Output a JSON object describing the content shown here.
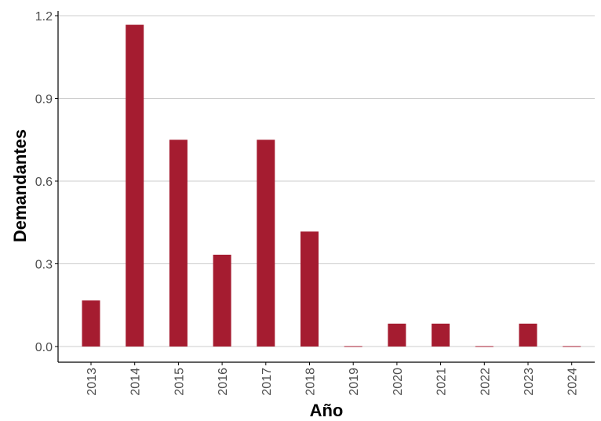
{
  "chart_data": {
    "type": "bar",
    "title": "",
    "xlabel": "Año",
    "ylabel": "Demandantes",
    "categories": [
      "2013",
      "2014",
      "2015",
      "2016",
      "2017",
      "2018",
      "2019",
      "2020",
      "2021",
      "2022",
      "2023",
      "2024"
    ],
    "values": [
      0.167,
      1.167,
      0.75,
      0.333,
      0.75,
      0.417,
      0.0,
      0.083,
      0.083,
      0.0,
      0.083,
      0.0
    ],
    "ylim": [
      0,
      1.2
    ],
    "yticks": [
      "0.0",
      "0.3",
      "0.6",
      "0.9",
      "1.2"
    ],
    "grid": "horizontal",
    "legend": "none",
    "bar_color": "#A51C30",
    "grid_color": "#cccccc",
    "axis_color": "#000000"
  }
}
